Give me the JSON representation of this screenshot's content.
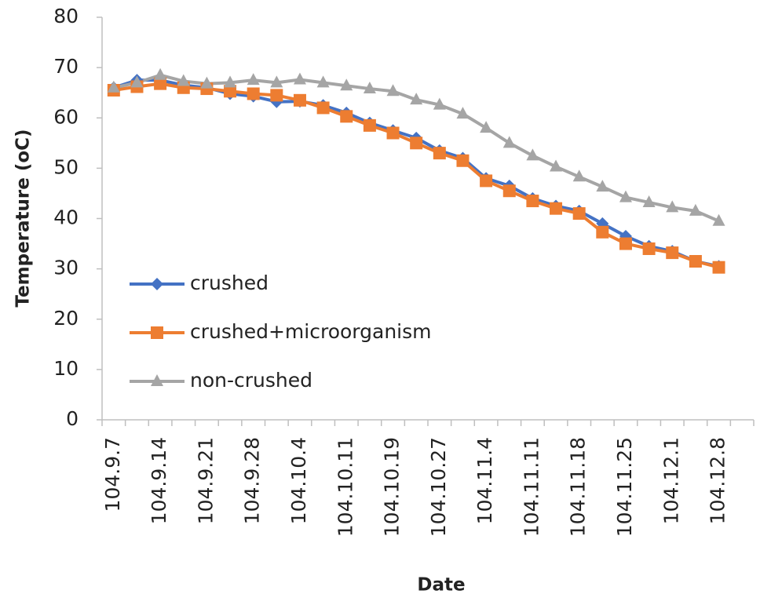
{
  "chart_data": {
    "type": "line",
    "y_label": "Temperature (oC)",
    "x_label": "Date",
    "categories": [
      "104.9.7",
      null,
      "104.9.14",
      null,
      "104.9.21",
      null,
      "104.9.28",
      null,
      "104.10.4",
      null,
      "104.10.11",
      null,
      "104.10.19",
      null,
      "104.10.27",
      null,
      "104.11.4",
      null,
      "104.11.11",
      null,
      "104.11.18",
      null,
      "104.11.25",
      null,
      "104.12.1",
      null,
      "104.12.8",
      null
    ],
    "series": [
      {
        "name": "crushed",
        "color": "#4472c4",
        "marker": "diamond",
        "values": [
          66,
          67.5,
          67.5,
          66.5,
          66,
          64.8,
          64.3,
          63.2,
          63.3,
          62.5,
          61,
          59,
          57.5,
          56,
          53.5,
          52,
          48,
          46.5,
          44,
          42.5,
          41.5,
          39,
          36.5,
          34.5,
          33.5,
          31.5,
          30.5,
          null
        ]
      },
      {
        "name": "crushed+microorganism",
        "color": "#ed7d31",
        "marker": "square",
        "values": [
          65.5,
          66.2,
          66.8,
          66,
          65.8,
          65.3,
          64.8,
          64.5,
          63.5,
          62,
          60.3,
          58.5,
          57,
          55,
          53,
          51.5,
          47.5,
          45.5,
          43.5,
          42,
          41,
          37.3,
          35,
          34,
          33.2,
          31.5,
          30.3,
          null
        ]
      },
      {
        "name": "non-crushed",
        "color": "#a5a5a5",
        "marker": "triangle",
        "values": [
          66,
          67,
          68.5,
          67.3,
          66.8,
          67,
          67.5,
          67,
          67.6,
          67,
          66.4,
          65.8,
          65.3,
          63.6,
          62.6,
          60.8,
          58,
          55,
          52.5,
          50.3,
          48.3,
          46.3,
          44.2,
          43.2,
          42.2,
          41.5,
          39.5,
          null
        ]
      }
    ],
    "ylim": [
      0,
      80
    ],
    "yticks": [
      0,
      10,
      20,
      30,
      40,
      50,
      60,
      70,
      80
    ],
    "grid": false,
    "legend": "left"
  }
}
